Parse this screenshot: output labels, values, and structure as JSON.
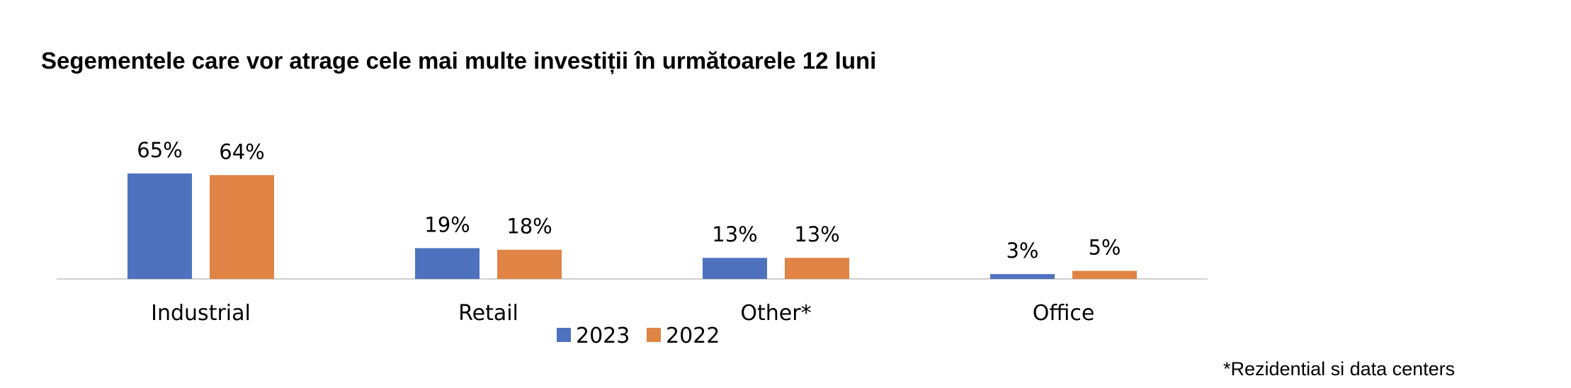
{
  "chart_data": {
    "type": "bar",
    "title": "Segementele care vor atrage cele mai multe investiții în următoarele 12 luni",
    "categories": [
      "Industrial",
      "Retail",
      "Other*",
      "Office"
    ],
    "series": [
      {
        "name": "2023",
        "values": [
          65,
          19,
          13,
          3
        ],
        "labels": [
          "65%",
          "19%",
          "13%",
          "3%"
        ],
        "color": "#4F72BF"
      },
      {
        "name": "2022",
        "values": [
          64,
          18,
          13,
          5
        ],
        "labels": [
          "64%",
          "18%",
          "13%",
          "5%"
        ],
        "color": "#DF8444"
      }
    ],
    "ylim": [
      0,
      65
    ],
    "grid": false,
    "legend_position": "bottom",
    "footnote": "*Rezidential si data centers"
  }
}
